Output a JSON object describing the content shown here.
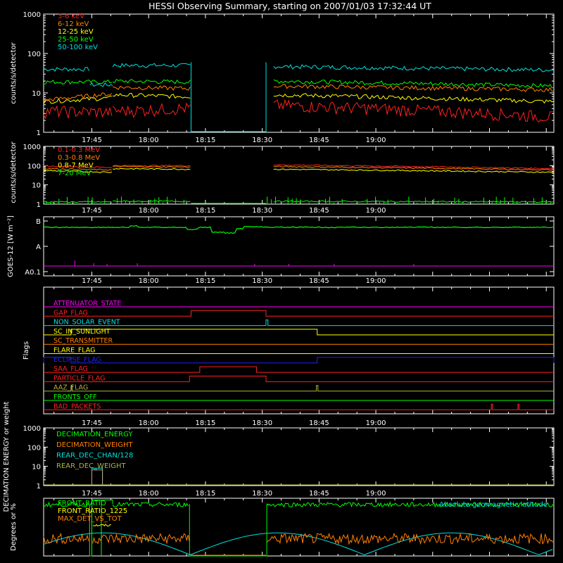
{
  "title": "HESSI Observing Summary, starting on 2007/01/03 17:32:44 UT",
  "colors": {
    "bg": "#000000",
    "axis": "#ffffff",
    "red": "#ff2020",
    "orange": "#ff7f00",
    "yellow": "#ffff00",
    "green": "#00ff00",
    "cyan": "#00e0e0",
    "magenta": "#ff00ff",
    "blue": "#2020ff",
    "olive": "#b0b040",
    "pink": "#ff60c0",
    "tan": "#c8a078"
  },
  "chart_data": [
    {
      "type": "line",
      "name": "panel-hxr",
      "ylabel": "counts/s/detector",
      "yscale": "log",
      "ylim": [
        1,
        1000
      ],
      "yticks": [
        "1",
        "10",
        "100",
        "1000"
      ],
      "xticks": [
        "17:45",
        "18:00",
        "18:15",
        "18:30",
        "18:45",
        "19:00"
      ],
      "xlim_min": [
        -12.73,
        122
      ],
      "gap_min": [
        26.2,
        46
      ],
      "series": [
        {
          "name": "3-6 keV",
          "color": "#ff2020",
          "segments": [
            [
              -12.73,
              3.5,
              3.3
            ],
            [
              5.5,
              3.5,
              4.2
            ],
            [
              48,
              5,
              2.5
            ]
          ]
        },
        {
          "name": "6-12 keV",
          "color": "#ff7f00",
          "segments": [
            [
              -12.73,
              6.5,
              9.5
            ],
            [
              5.5,
              14,
              13
            ],
            [
              48,
              15,
              12
            ]
          ]
        },
        {
          "name": "12-25 keV",
          "color": "#ffff00",
          "segments": [
            [
              -12.73,
              6.0,
              7.5
            ],
            [
              5.5,
              9,
              8
            ],
            [
              48,
              9,
              6
            ]
          ]
        },
        {
          "name": "25-50 keV",
          "color": "#00ff00",
          "segments": [
            [
              -12.73,
              19,
              19
            ],
            [
              5.5,
              20,
              19
            ],
            [
              48,
              20,
              15
            ]
          ]
        },
        {
          "name": "50-100 keV",
          "color": "#00e0e0",
          "segments": [
            [
              -12.73,
              40,
              40
            ],
            [
              -0.5,
              16,
              16
            ],
            [
              5.5,
              50,
              50
            ],
            [
              48,
              47,
              38
            ]
          ]
        }
      ]
    },
    {
      "type": "line",
      "name": "panel-gamma",
      "ylabel": "counts/s/detector",
      "yscale": "log",
      "ylim": [
        1,
        1000
      ],
      "yticks": [
        "1",
        "10",
        "100",
        "1000"
      ],
      "xticks": [
        "17:45",
        "18:00",
        "18:15",
        "18:30",
        "18:45",
        "19:00"
      ],
      "series": [
        {
          "name": "0.1-0.3 MeV",
          "color": "#ff2020",
          "segments": [
            [
              -12.73,
              95,
              80
            ],
            [
              5.5,
              100,
              100
            ],
            [
              48,
              110,
              70
            ]
          ]
        },
        {
          "name": "0.3-0.8 MeV",
          "color": "#ff7f00",
          "segments": [
            [
              -12.73,
              70,
              60
            ],
            [
              5.5,
              90,
              85
            ],
            [
              48,
              90,
              60
            ]
          ]
        },
        {
          "name": "0.8-7 MeV",
          "color": "#ffff00",
          "segments": [
            [
              -12.73,
              55,
              45
            ],
            [
              5.5,
              70,
              65
            ],
            [
              48,
              65,
              45
            ]
          ]
        },
        {
          "name": "7-20 MeV",
          "color": "#00ff00",
          "segments": [
            [
              -12.73,
              1.3,
              1.3
            ],
            [
              5.5,
              1.4,
              1.4
            ],
            [
              48,
              1.4,
              1.3
            ]
          ]
        }
      ]
    },
    {
      "type": "line",
      "name": "panel-goes",
      "ylabel": "GOES-12 [W m⁻²]",
      "yticks": [
        "B",
        "A",
        "A0.1"
      ],
      "series": [
        {
          "name": "GOES long",
          "color": "#00ff00",
          "level": 0.78
        },
        {
          "name": "GOES short",
          "color": "#ff00ff",
          "level": 0.02
        }
      ]
    },
    {
      "type": "table",
      "name": "panel-flags",
      "ylabel": "Flags",
      "flags": [
        {
          "label": "ATTENUATOR_STATE",
          "color": "#ff00ff",
          "on": []
        },
        {
          "label": "GAP_FLAG",
          "color": "#ff2020",
          "on": [
            [
              26.2,
              46
            ]
          ]
        },
        {
          "label": "NON_SOLAR_EVENT",
          "color": "#00e0e0",
          "on": [
            [
              46,
              46.5
            ]
          ]
        },
        {
          "label": "SC_IN_SUNLIGHT",
          "color": "#ffff00",
          "on": [
            [
              -5.5,
              59.5
            ]
          ]
        },
        {
          "label": "SC_TRANSMITTER",
          "color": "#ff7f00",
          "on": []
        },
        {
          "label": "FLARE_FLAG",
          "color": "#ffff00",
          "on": []
        },
        {
          "label": "ECLIPSE_FLAG",
          "color": "#2020ff",
          "on": [
            [
              -12.73,
              -5.5
            ],
            [
              59.5,
              122
            ]
          ]
        },
        {
          "label": "SAA_FLAG",
          "color": "#ff2020",
          "on": [
            [
              28.5,
              43.5
            ]
          ]
        },
        {
          "label": "PARTICLE_FLAG",
          "color": "#ff2020",
          "on": [
            [
              25.8,
              46
            ]
          ]
        },
        {
          "label": "AAZ_FLAG",
          "color": "#b0b040",
          "on": [
            [
              -5.5,
              -5.2
            ],
            [
              59.3,
              59.7
            ]
          ]
        },
        {
          "label": "FRONTS_OFF",
          "color": "#00ff00",
          "on": []
        },
        {
          "label": "BAD_PACKETS",
          "color": "#ff2020",
          "on": [
            [
              105.5,
              105.8
            ],
            [
              112.5,
              112.8
            ]
          ]
        }
      ],
      "xticks": [
        "17:45",
        "18:00",
        "18:15",
        "18:30",
        "18:45",
        "19:00"
      ]
    },
    {
      "type": "line",
      "name": "panel-decimation",
      "ylabel": "DECIMATION ENERGY or weight",
      "yscale": "log",
      "ylim": [
        1,
        1000
      ],
      "yticks": [
        "1",
        "10",
        "100",
        "1000"
      ],
      "xticks": [
        "17:45",
        "18:00",
        "18:15",
        "18:30",
        "18:45",
        "19:00"
      ],
      "series": [
        {
          "name": "DECIMATION_ENERGY",
          "color": "#00ff00"
        },
        {
          "name": "DECIMATION_WEIGHT",
          "color": "#ff7f00"
        },
        {
          "name": "REAR_DEC_CHAN/128",
          "color": "#00e0e0"
        },
        {
          "name": "REAR_DEC_WEIGHT",
          "color": "#b0b040"
        }
      ]
    },
    {
      "type": "line",
      "name": "panel-ratio",
      "ylabel": "Degrees or %",
      "ylim": [
        0,
        100
      ],
      "series": [
        {
          "name": "FRONT_RATIO",
          "color": "#00ff00"
        },
        {
          "name": "FRONT_RATIO_1225",
          "color": "#ffff00"
        },
        {
          "name": "MAX_DET_VS_TOT",
          "color": "#ff7f00"
        },
        {
          "name": "Absolute geomagnetic latitude",
          "color": "#00e0e0"
        }
      ]
    }
  ]
}
